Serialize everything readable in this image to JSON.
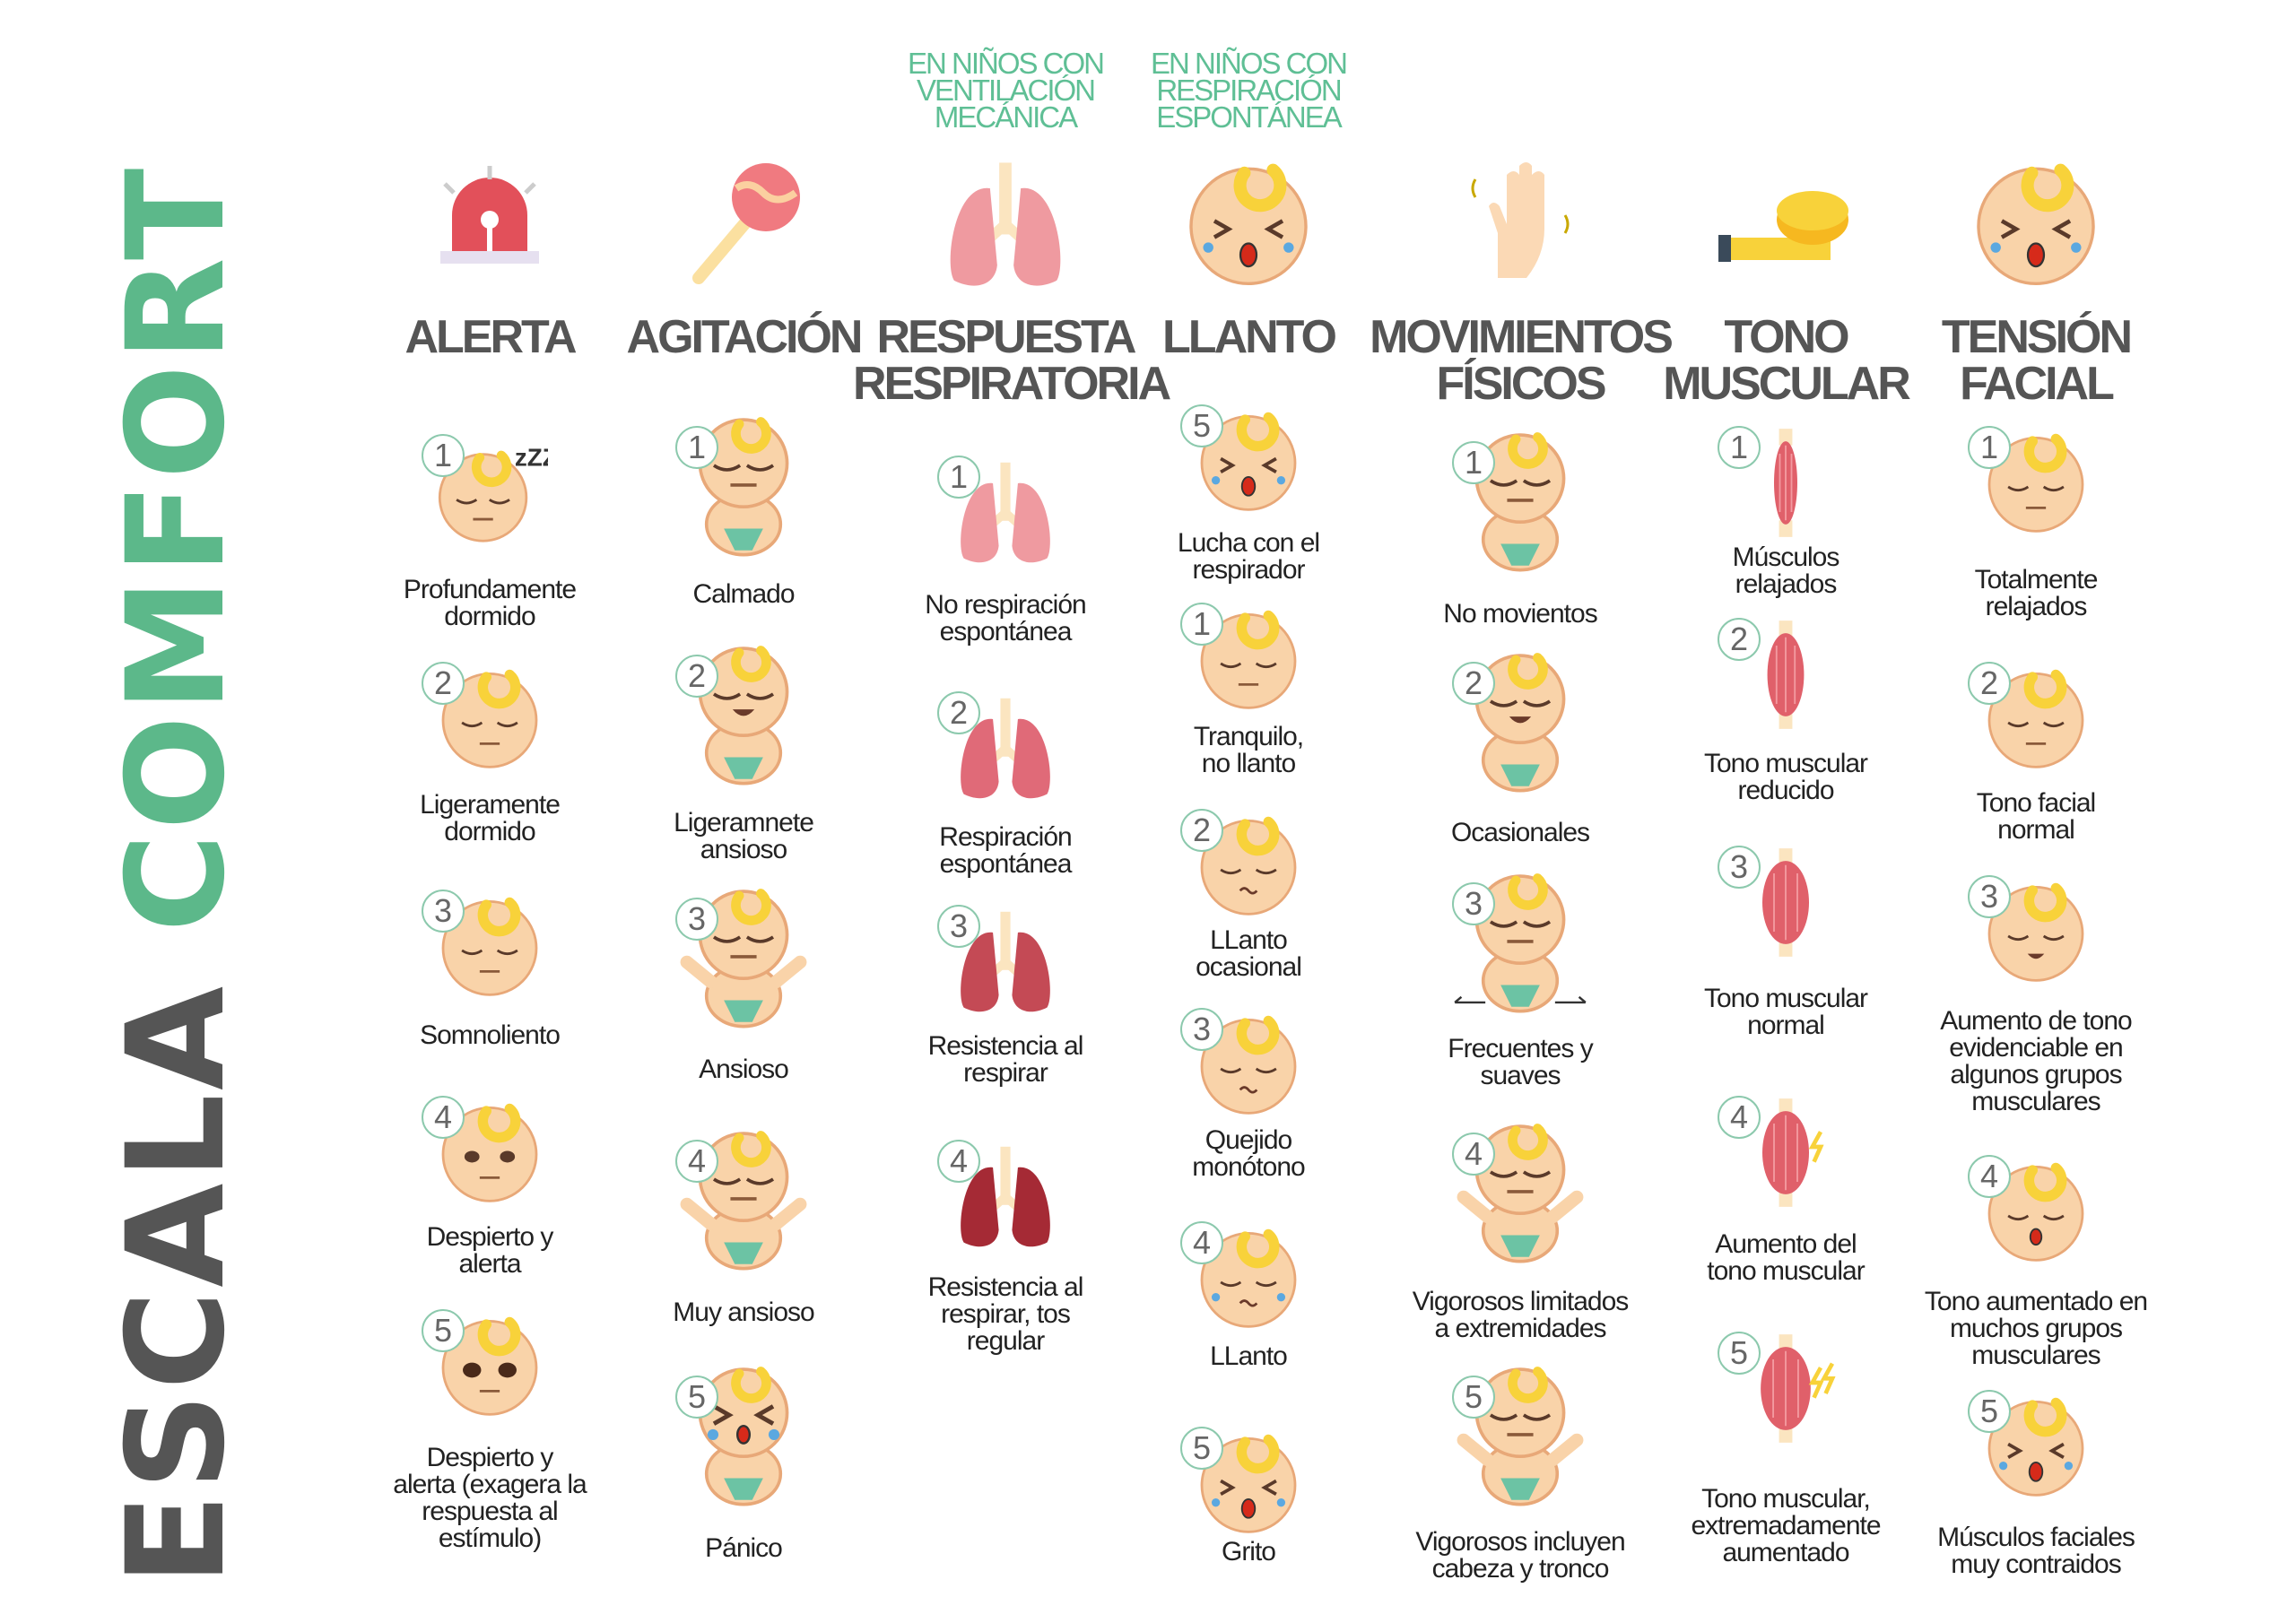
{
  "title": {
    "part1": "ESCALA",
    "part2": "COMFORT"
  },
  "colors": {
    "green": "#5cb88a",
    "gray": "#555555",
    "skin": "#f9d3a9",
    "hair": "#f8d23a",
    "diaper": "#6cc3a4",
    "lung": "#e98a8f",
    "muscle": "#e0606a"
  },
  "columns": [
    {
      "title": "ALERTA",
      "icon": "alarm-siren-icon",
      "items": [
        {
          "level": "1",
          "label": "Profundamente\ndormido",
          "icon": "sleeping-baby-zzz"
        },
        {
          "level": "2",
          "label": "Ligeramente\ndormido",
          "icon": "baby-eyes-closed"
        },
        {
          "level": "3",
          "label": "Somnoliento",
          "icon": "baby-drowsy"
        },
        {
          "level": "4",
          "label": "Despierto y\nalerta",
          "icon": "baby-eyes-open"
        },
        {
          "level": "5",
          "label": "Despierto y\nalerta (exagera la\nrespuesta al\nestímulo)",
          "icon": "baby-eyes-wide"
        }
      ]
    },
    {
      "title": "AGITACIÓN",
      "icon": "rattle-icon",
      "items": [
        {
          "level": "1",
          "label": "Calmado",
          "icon": "baby-body-calm"
        },
        {
          "level": "2",
          "label": "Ligeramnete\nansioso",
          "icon": "baby-body-smile"
        },
        {
          "level": "3",
          "label": "Ansioso",
          "icon": "baby-body-arms"
        },
        {
          "level": "4",
          "label": "Muy ansioso",
          "icon": "baby-body-arms-up"
        },
        {
          "level": "5",
          "label": "Pánico",
          "icon": "baby-body-crying"
        }
      ]
    },
    {
      "title": "RESPUESTA\nRESPIRATORIA",
      "subtitle": "EN NIÑOS CON\nVENTILACIÓN\nMECÁNICA",
      "icon": "lungs-icon",
      "items": [
        {
          "level": "1",
          "label": "No respiración\nespontánea",
          "icon": "lungs-1"
        },
        {
          "level": "2",
          "label": "Respiración\nespontánea",
          "icon": "lungs-2"
        },
        {
          "level": "3",
          "label": "Resistencia al\nrespirar",
          "icon": "lungs-3"
        },
        {
          "level": "4",
          "label": "Resistencia al\nrespirar, tos\nregular",
          "icon": "lungs-4"
        }
      ]
    },
    {
      "title": "LLANTO",
      "subtitle": "EN NIÑOS CON\nRESPIRACIÓN\nESPONTÁNEA",
      "icon": "crying-baby-icon",
      "items": [
        {
          "level": "5",
          "label": "Lucha con el\nrespirador",
          "icon": "baby-crying"
        },
        {
          "level": "1",
          "label": "Tranquilo,\nno llanto",
          "icon": "baby-eyes-closed"
        },
        {
          "level": "2",
          "label": "LLanto\nocasional",
          "icon": "baby-whimper"
        },
        {
          "level": "3",
          "label": "Quejido\nmonótono",
          "icon": "baby-moan"
        },
        {
          "level": "4",
          "label": "LLanto",
          "icon": "baby-tears"
        },
        {
          "level": "5",
          "label": "Grito",
          "icon": "baby-crying"
        }
      ]
    },
    {
      "title": "MOVIMIENTOS\nFÍSICOS",
      "icon": "waving-hand-icon",
      "items": [
        {
          "level": "1",
          "label": "No movientos",
          "icon": "baby-body-calm"
        },
        {
          "level": "2",
          "label": "Ocasionales",
          "icon": "baby-body-smile"
        },
        {
          "level": "3",
          "label": "Frecuentes y\nsuaves",
          "icon": "baby-body-arrows"
        },
        {
          "level": "4",
          "label": "Vigorosos limitados\na extremidades",
          "icon": "baby-body-arms"
        },
        {
          "level": "5",
          "label": "Vigorosos incluyen\ncabeza y tronco",
          "icon": "baby-body-arms-up"
        }
      ]
    },
    {
      "title": "TONO\nMUSCULAR",
      "icon": "measuring-tape-icon",
      "items": [
        {
          "level": "1",
          "label": "Músculos\nrelajados",
          "icon": "muscle-1"
        },
        {
          "level": "2",
          "label": "Tono muscular\nreducido",
          "icon": "muscle-2"
        },
        {
          "level": "3",
          "label": "Tono muscular\nnormal",
          "icon": "muscle-3"
        },
        {
          "level": "4",
          "label": "Aumento del\ntono muscular",
          "icon": "muscle-4"
        },
        {
          "level": "5",
          "label": "Tono muscular,\nextremadamente\naumentado",
          "icon": "muscle-5"
        }
      ]
    },
    {
      "title": "TENSIÓN\nFACIAL",
      "icon": "tense-face-icon",
      "items": [
        {
          "level": "1",
          "label": "Totalmente\nrelajados",
          "icon": "baby-eyes-closed"
        },
        {
          "level": "2",
          "label": "Tono facial\nnormal",
          "icon": "baby-calm"
        },
        {
          "level": "3",
          "label": "Aumento de tono\nevidenciable en\nalgunos grupos\nmusculares",
          "icon": "baby-frown"
        },
        {
          "level": "4",
          "label": "Tono aumentado en\nmuchos grupos\nmusculares",
          "icon": "baby-open-mouth"
        },
        {
          "level": "5",
          "label": "Músculos faciales\nmuy contraidos",
          "icon": "baby-crying"
        }
      ]
    }
  ]
}
